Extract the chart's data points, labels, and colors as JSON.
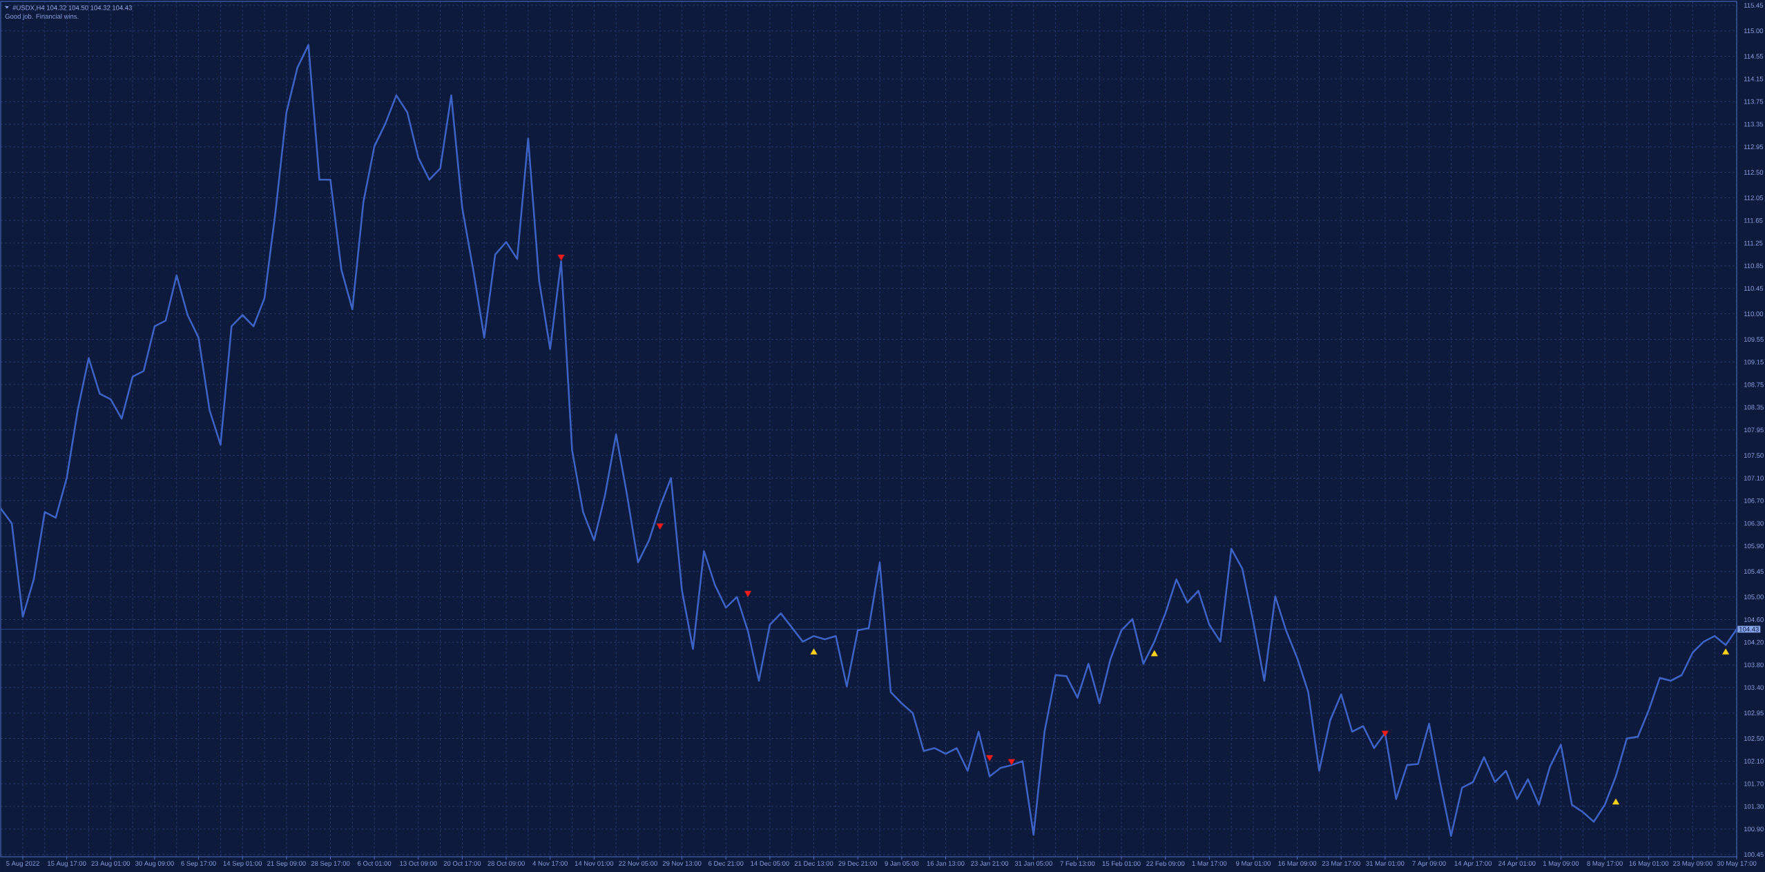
{
  "chart_data": {
    "type": "line",
    "title": "#USDX,H4 104.32 104.50 104.32 104.43",
    "subtitle": "Good job. Financial wins.",
    "categories": [
      null,
      null,
      "5 Aug 2022",
      null,
      null,
      null,
      "15 Aug 17:00",
      null,
      null,
      null,
      "23 Aug 01:00",
      null,
      null,
      null,
      "30 Aug 09:00",
      null,
      null,
      null,
      "6 Sep 17:00",
      null,
      null,
      null,
      "14 Sep 01:00",
      null,
      null,
      null,
      "21 Sep 09:00",
      null,
      null,
      null,
      "28 Sep 17:00",
      null,
      null,
      null,
      "6 Oct 01:00",
      null,
      null,
      null,
      "13 Oct 09:00",
      null,
      null,
      null,
      "20 Oct 17:00",
      null,
      null,
      null,
      "28 Oct 09:00",
      null,
      null,
      null,
      "4 Nov 17:00",
      null,
      null,
      null,
      "14 Nov 01:00",
      null,
      null,
      null,
      "22 Nov 05:00",
      null,
      null,
      null,
      "29 Nov 13:00",
      null,
      null,
      null,
      "6 Dec 21:00",
      null,
      null,
      null,
      "14 Dec 05:00",
      null,
      null,
      null,
      "21 Dec 13:00",
      null,
      null,
      null,
      "29 Dec 21:00",
      null,
      null,
      null,
      "9 Jan 05:00",
      null,
      null,
      null,
      "16 Jan 13:00",
      null,
      null,
      null,
      "23 Jan 21:00",
      null,
      null,
      null,
      "31 Jan 05:00",
      null,
      null,
      null,
      "7 Feb 13:00",
      null,
      null,
      null,
      "15 Feb 01:00",
      null,
      null,
      null,
      "22 Feb 09:00",
      null,
      null,
      null,
      "1 Mar 17:00",
      null,
      null,
      null,
      "9 Mar 01:00",
      null,
      null,
      null,
      "16 Mar 09:00",
      null,
      null,
      null,
      "23 Mar 17:00",
      null,
      null,
      null,
      "31 Mar 01:00",
      null,
      null,
      null,
      "7 Apr 09:00",
      null,
      null,
      null,
      "14 Apr 17:00",
      null,
      null,
      null,
      "24 Apr 01:00",
      null,
      null,
      null,
      "1 May 09:00",
      null,
      null,
      null,
      "8 May 17:00",
      null,
      null,
      null,
      "16 May 01:00",
      null,
      null,
      null,
      "23 May 09:00",
      null,
      null,
      null,
      "30 May 17:00"
    ],
    "ylim": [
      100.41,
      115.52
    ],
    "yticks": [
      115.45,
      {
        "value": 115,
        "label": "115.00"
      },
      114.55,
      114.15,
      113.75,
      113.35,
      112.95,
      {
        "value": 112.5,
        "label": "112.50"
      },
      112.05,
      111.65,
      111.25,
      110.85,
      110.45,
      {
        "value": 110,
        "label": "110.00"
      },
      109.55,
      109.15,
      108.75,
      108.35,
      107.95,
      {
        "value": 107.5,
        "label": "107.50"
      },
      {
        "value": 107.1,
        "label": "107.10"
      },
      {
        "value": 106.7,
        "label": "106.70"
      },
      {
        "value": 106.3,
        "label": "106.30"
      },
      {
        "value": 105.9,
        "label": "105.90"
      },
      105.45,
      {
        "value": 105,
        "label": "105.00"
      },
      {
        "value": 104.6,
        "label": "104.60"
      },
      {
        "value": 104.2,
        "label": "104.20"
      },
      {
        "value": 103.8,
        "label": "103.80"
      },
      {
        "value": 103.4,
        "label": "103.40"
      },
      102.95,
      {
        "value": 102.5,
        "label": "102.50"
      },
      {
        "value": 102.1,
        "label": "102.10"
      },
      {
        "value": 101.7,
        "label": "101.70"
      },
      {
        "value": 101.3,
        "label": "101.30"
      },
      {
        "value": 100.9,
        "label": "100.90"
      },
      100.45
    ],
    "grid": true,
    "ref_lines": [
      {
        "axis": "y",
        "value": 104.43,
        "label": "104.43",
        "color": "#2b4c9e",
        "line_style": "solid"
      }
    ],
    "series": [
      {
        "color": "#3b62c4",
        "line_style": "solid",
        "values": [
          106.56,
          106.3,
          104.65,
          105.31,
          106.5,
          106.4,
          107.1,
          108.3,
          109.22,
          108.59,
          108.49,
          108.15,
          108.89,
          108.99,
          109.78,
          109.88,
          110.68,
          109.98,
          109.58,
          108.3,
          107.69,
          109.78,
          109.98,
          109.78,
          110.28,
          111.8,
          113.56,
          114.35,
          114.75,
          112.37,
          112.37,
          110.78,
          110.08,
          111.97,
          112.96,
          113.36,
          113.86,
          113.56,
          112.76,
          112.37,
          112.57,
          113.86,
          111.87,
          110.78,
          109.58,
          111.05,
          111.27,
          110.97,
          113.1,
          110.58,
          109.38,
          110.93,
          107.59,
          106.5,
          106.0,
          106.8,
          107.87,
          106.8,
          105.61,
          106.0,
          106.6,
          107.1,
          105.11,
          104.08,
          105.81,
          105.21,
          104.81,
          105.0,
          104.4,
          103.52,
          104.51,
          104.71,
          104.46,
          104.21,
          104.31,
          104.25,
          104.31,
          103.42,
          104.41,
          104.45,
          105.61,
          103.32,
          103.12,
          102.95,
          102.28,
          102.33,
          102.23,
          102.33,
          101.93,
          102.62,
          101.83,
          101.98,
          102.03,
          102.1,
          100.8,
          102.62,
          103.62,
          103.6,
          103.22,
          103.82,
          103.12,
          103.9,
          104.41,
          104.61,
          103.82,
          104.21,
          104.71,
          105.31,
          104.9,
          105.11,
          104.51,
          104.21,
          105.85,
          105.5,
          104.56,
          103.52,
          105.01,
          104.4,
          103.92,
          103.32,
          101.93,
          102.82,
          103.28,
          102.62,
          102.72,
          102.33,
          102.6,
          101.43,
          102.03,
          102.05,
          102.76,
          101.73,
          100.78,
          101.63,
          101.73,
          102.17,
          101.73,
          101.93,
          101.43,
          101.78,
          101.33,
          102.0,
          102.39,
          101.33,
          101.2,
          101.03,
          101.33,
          101.83,
          102.5,
          102.53,
          103.0,
          103.57,
          103.52,
          103.62,
          104.02,
          104.21,
          104.31,
          104.15,
          104.43
        ]
      },
      {
        "type": "scatter",
        "color": "#f01c1c",
        "marker": "triangle",
        "values": [
          null,
          null,
          null,
          null,
          null,
          null,
          null,
          null,
          null,
          null,
          null,
          null,
          null,
          null,
          null,
          null,
          null,
          null,
          null,
          null,
          null,
          null,
          null,
          null,
          null,
          null,
          null,
          null,
          null,
          null,
          null,
          null,
          null,
          null,
          null,
          null,
          null,
          null,
          null,
          null,
          null,
          null,
          null,
          null,
          null,
          null,
          null,
          null,
          null,
          null,
          null,
          111.01,
          null,
          null,
          null,
          null,
          null,
          null,
          null,
          null,
          106.26,
          null,
          null,
          null,
          null,
          null,
          null,
          null,
          105.07,
          null,
          null,
          null,
          null,
          null,
          null,
          null,
          null,
          null,
          null,
          null,
          null,
          null,
          null,
          null,
          null,
          null,
          null,
          null,
          null,
          null,
          102.17,
          null,
          102.1,
          null,
          null,
          null,
          null,
          null,
          null,
          null,
          null,
          null,
          null,
          null,
          null,
          null,
          null,
          null,
          null,
          null,
          null,
          null,
          null,
          null,
          null,
          null,
          null,
          null,
          null,
          null,
          null,
          null,
          null,
          null,
          null,
          null,
          102.6,
          null,
          null,
          null,
          null,
          null,
          null,
          null,
          null,
          null,
          null,
          null,
          null,
          null,
          null,
          null,
          null,
          null,
          null,
          null,
          null,
          null,
          null,
          null,
          null,
          null,
          null,
          null,
          null,
          null,
          null,
          null,
          null
        ]
      },
      {
        "type": "scatter",
        "color": "#ffd21a",
        "marker": "triangle",
        "values": [
          null,
          null,
          null,
          null,
          null,
          null,
          null,
          null,
          null,
          null,
          null,
          null,
          null,
          null,
          null,
          null,
          null,
          null,
          null,
          null,
          null,
          null,
          null,
          null,
          null,
          null,
          null,
          null,
          null,
          null,
          null,
          null,
          null,
          null,
          null,
          null,
          null,
          null,
          null,
          null,
          null,
          null,
          null,
          null,
          null,
          null,
          null,
          null,
          null,
          null,
          null,
          null,
          null,
          null,
          null,
          null,
          null,
          null,
          null,
          null,
          null,
          null,
          null,
          null,
          null,
          null,
          null,
          null,
          null,
          null,
          null,
          null,
          null,
          null,
          104.02,
          null,
          null,
          null,
          null,
          null,
          null,
          null,
          null,
          null,
          null,
          null,
          null,
          null,
          null,
          null,
          null,
          null,
          null,
          null,
          null,
          null,
          null,
          null,
          null,
          null,
          null,
          null,
          null,
          null,
          null,
          103.99,
          null,
          null,
          null,
          null,
          null,
          null,
          null,
          null,
          null,
          null,
          null,
          null,
          null,
          null,
          null,
          null,
          null,
          null,
          null,
          null,
          null,
          null,
          null,
          null,
          null,
          null,
          null,
          null,
          null,
          null,
          null,
          null,
          null,
          null,
          null,
          null,
          null,
          null,
          null,
          null,
          null,
          101.37,
          null,
          null,
          null,
          null,
          null,
          null,
          null,
          null,
          null,
          104.02,
          null
        ]
      }
    ]
  }
}
